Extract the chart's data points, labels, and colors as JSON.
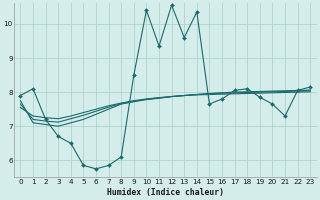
{
  "xlabel": "Humidex (Indice chaleur)",
  "bg_color": "#d4ecea",
  "grid_color": "#afd4cf",
  "line_color": "#1a6b6b",
  "xlim": [
    -0.5,
    23.5
  ],
  "ylim": [
    5.5,
    10.6
  ],
  "xticks": [
    0,
    1,
    2,
    3,
    4,
    5,
    6,
    7,
    8,
    9,
    10,
    11,
    12,
    13,
    14,
    15,
    16,
    17,
    18,
    19,
    20,
    21,
    22,
    23
  ],
  "yticks": [
    6,
    7,
    8,
    9,
    10
  ],
  "series1_y": [
    7.9,
    8.1,
    7.2,
    6.7,
    6.5,
    5.85,
    5.75,
    5.85,
    6.1,
    8.5,
    10.4,
    9.35,
    10.55,
    9.6,
    10.35,
    7.65,
    7.8,
    8.05,
    8.1,
    7.85,
    7.65,
    7.3,
    8.05,
    8.15
  ],
  "series2_y": [
    7.75,
    7.1,
    7.05,
    7.0,
    7.1,
    7.2,
    7.35,
    7.5,
    7.65,
    7.72,
    7.78,
    7.82,
    7.87,
    7.9,
    7.93,
    7.96,
    7.98,
    8.0,
    8.01,
    8.02,
    8.03,
    8.04,
    8.05,
    8.06
  ],
  "series3_y": [
    7.65,
    7.2,
    7.15,
    7.12,
    7.22,
    7.32,
    7.44,
    7.56,
    7.66,
    7.73,
    7.79,
    7.83,
    7.87,
    7.9,
    7.93,
    7.95,
    7.97,
    7.98,
    7.99,
    8.0,
    8.01,
    8.02,
    8.03,
    8.04
  ],
  "series4_y": [
    7.55,
    7.3,
    7.25,
    7.22,
    7.3,
    7.4,
    7.5,
    7.6,
    7.68,
    7.75,
    7.8,
    7.84,
    7.87,
    7.9,
    7.92,
    7.93,
    7.94,
    7.95,
    7.96,
    7.97,
    7.98,
    7.99,
    8.0,
    8.01
  ]
}
